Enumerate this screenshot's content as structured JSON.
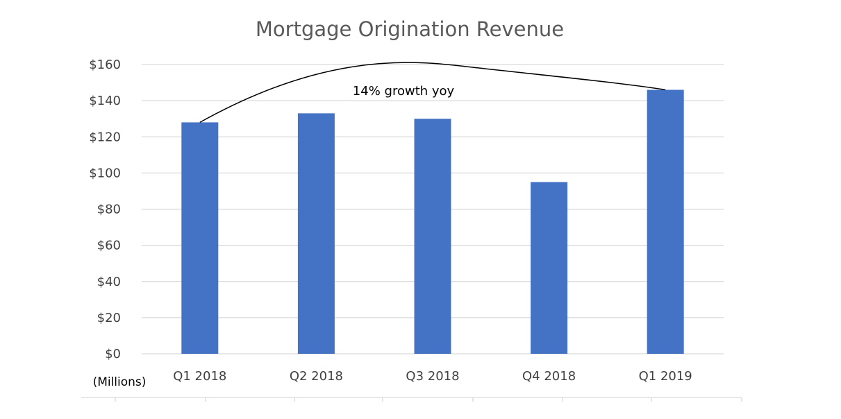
{
  "chart_data": {
    "type": "bar",
    "title": "Mortgage Origination Revenue",
    "categories": [
      "Q1 2018",
      "Q2 2018",
      "Q3 2018",
      "Q4 2018",
      "Q1 2019"
    ],
    "values": [
      128,
      133,
      130,
      95,
      146
    ],
    "y_ticks": [
      "$0",
      "$20",
      "$40",
      "$60",
      "$80",
      "$100",
      "$120",
      "$140",
      "$160"
    ],
    "ylim": [
      0,
      160
    ],
    "unit_label": "(Millions)",
    "grid": true,
    "legend": "none",
    "annotation": {
      "text": "14% growth yoy",
      "from_category": "Q1 2018",
      "to_category": "Q1 2019"
    },
    "colors": {
      "bar": "#4472C4",
      "grid": "#d9d9d9",
      "axis": "#d9d9d9",
      "title": "#595959",
      "tick": "#404040",
      "annotation_line": "#000000"
    }
  }
}
